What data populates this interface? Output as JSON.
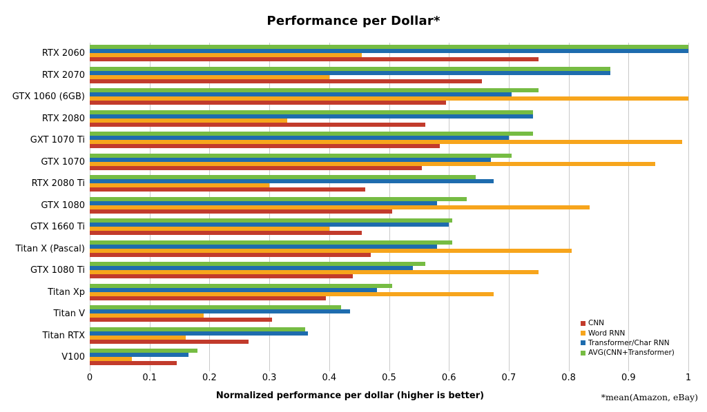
{
  "chart_data": {
    "type": "bar",
    "orientation": "horizontal",
    "title": "Performance per Dollar*",
    "xlabel": "Normalized performance per dollar (higher is better)",
    "footnote": "*mean(Amazon, eBay)",
    "xlim": [
      0,
      1
    ],
    "xtick_labels": [
      "0",
      "0.1",
      "0.2",
      "0.3",
      "0.4",
      "0.5",
      "0.6",
      "0.7",
      "0.8",
      "0.9",
      "1"
    ],
    "grid": true,
    "legend_position": "inside-bottom-right",
    "legend_order": [
      "CNN",
      "Word RNN",
      "Transformer/Char RNN",
      "AVG(CNN+Transformer)"
    ],
    "bar_order_top_to_bottom": [
      "AVG(CNN+Transformer)",
      "Transformer/Char RNN",
      "Word RNN",
      "CNN"
    ],
    "categories": [
      "RTX 2060",
      "RTX 2070",
      "GTX 1060 (6GB)",
      "RTX 2080",
      "GXT 1070 Ti",
      "GTX 1070",
      "RTX 2080 Ti",
      "GTX 1080",
      "GTX 1660 Ti",
      "Titan X (Pascal)",
      "GTX 1080 Ti",
      "Titan Xp",
      "Titan V",
      "Titan RTX",
      "V100"
    ],
    "series": [
      {
        "name": "CNN",
        "color": "#c23b2c",
        "values": [
          0.75,
          0.655,
          0.595,
          0.56,
          0.585,
          0.555,
          0.46,
          0.505,
          0.455,
          0.47,
          0.44,
          0.395,
          0.305,
          0.265,
          0.145
        ]
      },
      {
        "name": "Word RNN",
        "color": "#f7a51c",
        "values": [
          0.455,
          0.4,
          1.0,
          0.33,
          0.99,
          0.945,
          0.3,
          0.835,
          0.4,
          0.805,
          0.75,
          0.675,
          0.19,
          0.16,
          0.07
        ]
      },
      {
        "name": "Transformer/Char RNN",
        "color": "#1e6cae",
        "values": [
          1.0,
          0.87,
          0.705,
          0.74,
          0.7,
          0.67,
          0.675,
          0.58,
          0.6,
          0.58,
          0.54,
          0.48,
          0.435,
          0.365,
          0.165
        ]
      },
      {
        "name": "AVG(CNN+Transformer)",
        "color": "#76bc43",
        "values": [
          1.0,
          0.87,
          0.75,
          0.74,
          0.74,
          0.705,
          0.645,
          0.63,
          0.605,
          0.605,
          0.56,
          0.505,
          0.42,
          0.36,
          0.18
        ]
      }
    ],
    "colors": {
      "gridline": "#c9c9c9",
      "background": "#ffffff",
      "text": "#000000"
    }
  }
}
